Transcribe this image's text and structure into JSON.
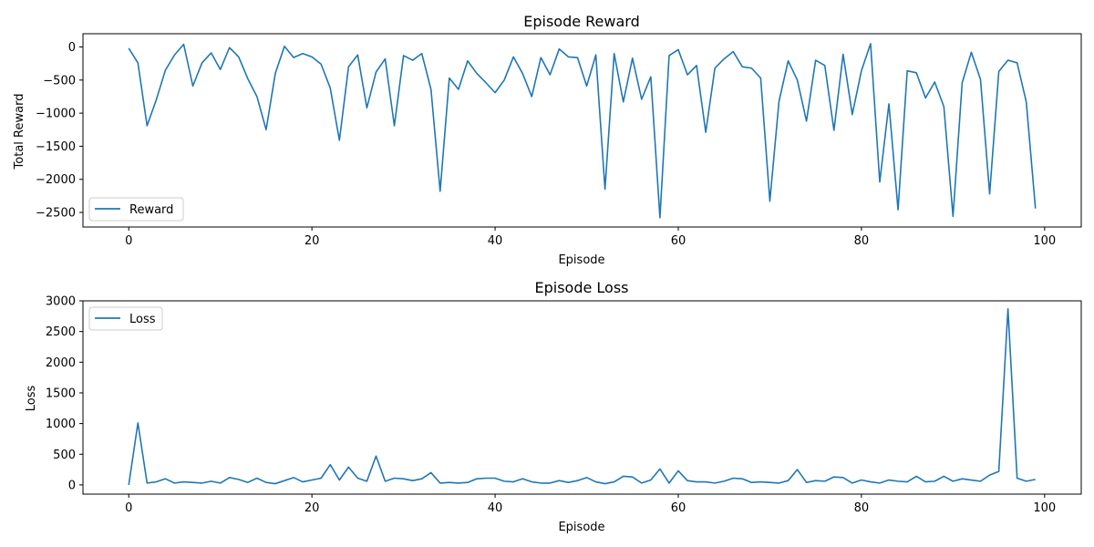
{
  "chart_data": [
    {
      "type": "line",
      "title": "Episode Reward",
      "xlabel": "Episode",
      "ylabel": "Total Reward",
      "xlim": [
        -5,
        104
      ],
      "ylim": [
        -2720,
        200
      ],
      "xticks": [
        0,
        20,
        40,
        60,
        80,
        100
      ],
      "yticks": [
        0,
        -500,
        -1000,
        -1500,
        -2000,
        -2500
      ],
      "xtick_labels": [
        "0",
        "20",
        "40",
        "60",
        "80",
        "100"
      ],
      "ytick_labels": [
        "0",
        "−500",
        "−1000",
        "−1500",
        "−2000",
        "−2500"
      ],
      "legend_position": "bottom-left",
      "grid": false,
      "color": "#1f77b4",
      "series": [
        {
          "name": "Reward",
          "x": [
            0,
            1,
            2,
            3,
            4,
            5,
            6,
            7,
            8,
            9,
            10,
            11,
            12,
            13,
            14,
            15,
            16,
            17,
            18,
            19,
            20,
            21,
            22,
            23,
            24,
            25,
            26,
            27,
            28,
            29,
            30,
            31,
            32,
            33,
            34,
            35,
            36,
            37,
            38,
            39,
            40,
            41,
            42,
            43,
            44,
            45,
            46,
            47,
            48,
            49,
            50,
            51,
            52,
            53,
            54,
            55,
            56,
            57,
            58,
            59,
            60,
            61,
            62,
            63,
            64,
            65,
            66,
            67,
            68,
            69,
            70,
            71,
            72,
            73,
            74,
            75,
            76,
            77,
            78,
            79,
            80,
            81,
            82,
            83,
            84,
            85,
            86,
            87,
            88,
            89,
            90,
            91,
            92,
            93,
            94,
            95,
            96,
            97,
            98,
            99
          ],
          "values": [
            -20,
            -240,
            -1190,
            -800,
            -350,
            -120,
            40,
            -590,
            -240,
            -90,
            -340,
            -10,
            -150,
            -480,
            -750,
            -1250,
            -400,
            10,
            -160,
            -100,
            -150,
            -260,
            -620,
            -1410,
            -300,
            -120,
            -920,
            -380,
            -180,
            -1190,
            -130,
            -200,
            -100,
            -640,
            -2180,
            -470,
            -640,
            -210,
            -400,
            -540,
            -690,
            -500,
            -150,
            -400,
            -750,
            -160,
            -420,
            -30,
            -150,
            -160,
            -590,
            -120,
            -2150,
            -100,
            -830,
            -170,
            -790,
            -450,
            -2580,
            -130,
            -40,
            -420,
            -280,
            -1290,
            -320,
            -180,
            -70,
            -300,
            -320,
            -470,
            -2330,
            -820,
            -210,
            -500,
            -1120,
            -200,
            -280,
            -1260,
            -110,
            -1020,
            -360,
            50,
            -2040,
            -860,
            -2460,
            -360,
            -390,
            -770,
            -530,
            -900,
            -2560,
            -540,
            -80,
            -490,
            -2220,
            -370,
            -200,
            -240,
            -830,
            -2440
          ]
        }
      ]
    },
    {
      "type": "line",
      "title": "Episode Loss",
      "xlabel": "Episode",
      "ylabel": "Loss",
      "xlim": [
        -5,
        104
      ],
      "ylim": [
        -150,
        3000
      ],
      "xticks": [
        0,
        20,
        40,
        60,
        80,
        100
      ],
      "yticks": [
        0,
        500,
        1000,
        1500,
        2000,
        2500,
        3000
      ],
      "xtick_labels": [
        "0",
        "20",
        "40",
        "60",
        "80",
        "100"
      ],
      "ytick_labels": [
        "0",
        "500",
        "1000",
        "1500",
        "2000",
        "2500",
        "3000"
      ],
      "legend_position": "top-left",
      "grid": false,
      "color": "#1f77b4",
      "series": [
        {
          "name": "Loss",
          "x": [
            0,
            1,
            2,
            3,
            4,
            5,
            6,
            7,
            8,
            9,
            10,
            11,
            12,
            13,
            14,
            15,
            16,
            17,
            18,
            19,
            20,
            21,
            22,
            23,
            24,
            25,
            26,
            27,
            28,
            29,
            30,
            31,
            32,
            33,
            34,
            35,
            36,
            37,
            38,
            39,
            40,
            41,
            42,
            43,
            44,
            45,
            46,
            47,
            48,
            49,
            50,
            51,
            52,
            53,
            54,
            55,
            56,
            57,
            58,
            59,
            60,
            61,
            62,
            63,
            64,
            65,
            66,
            67,
            68,
            69,
            70,
            71,
            72,
            73,
            74,
            75,
            76,
            77,
            78,
            79,
            80,
            81,
            82,
            83,
            84,
            85,
            86,
            87,
            88,
            89,
            90,
            91,
            92,
            93,
            94,
            95,
            96,
            97,
            98,
            99
          ],
          "values": [
            0,
            1010,
            30,
            50,
            100,
            30,
            50,
            40,
            30,
            60,
            30,
            120,
            90,
            40,
            110,
            40,
            20,
            70,
            120,
            50,
            80,
            110,
            330,
            80,
            290,
            110,
            60,
            470,
            60,
            110,
            100,
            70,
            100,
            200,
            30,
            40,
            30,
            40,
            100,
            110,
            110,
            60,
            50,
            100,
            50,
            30,
            30,
            70,
            40,
            70,
            120,
            50,
            20,
            50,
            140,
            130,
            30,
            80,
            260,
            30,
            230,
            70,
            50,
            50,
            30,
            60,
            110,
            100,
            40,
            50,
            40,
            30,
            70,
            250,
            40,
            70,
            60,
            130,
            120,
            30,
            80,
            50,
            30,
            80,
            60,
            50,
            140,
            50,
            60,
            140,
            60,
            100,
            80,
            60,
            160,
            220,
            2870,
            110,
            60,
            90
          ]
        }
      ]
    }
  ]
}
